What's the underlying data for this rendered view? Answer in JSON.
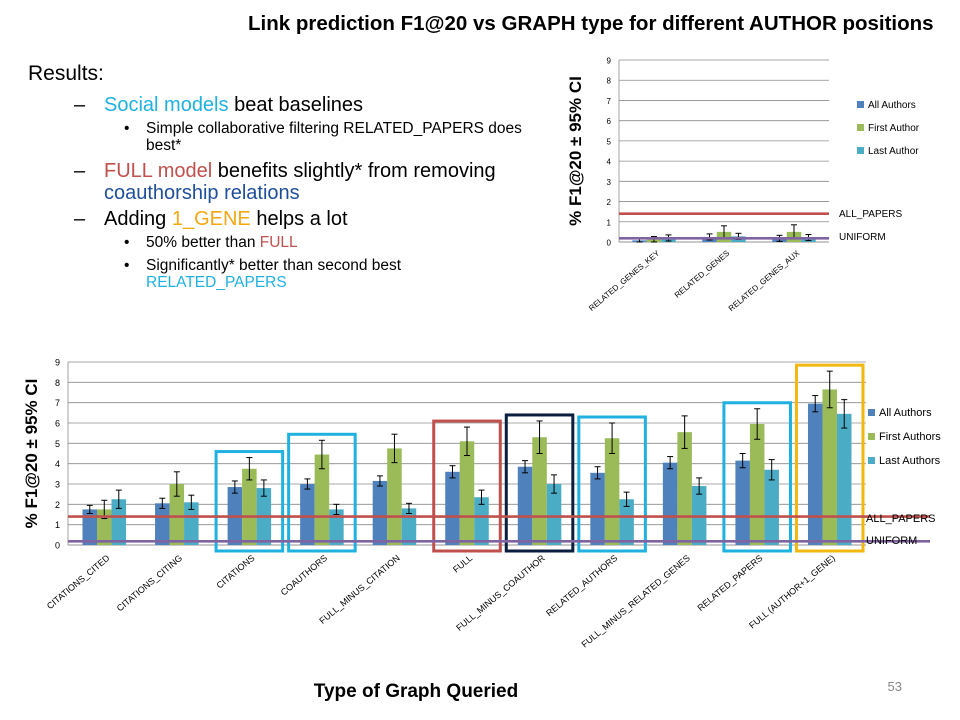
{
  "slide": {
    "title": "Link prediction F1@20 vs GRAPH type for different AUTHOR positions",
    "page_number": "53"
  },
  "bullets": {
    "heading": "Results:",
    "items": [
      {
        "parts": [
          {
            "text": "Social models",
            "color": "#1fb1e0"
          },
          {
            "text": " beat baselines",
            "color": ""
          }
        ],
        "sub": [
          [
            {
              "text": "Simple collaborative filtering RELATED_PAPERS does best*",
              "color": ""
            }
          ]
        ]
      },
      {
        "parts": [
          {
            "text": "FULL model",
            "color": "#c0504d"
          },
          {
            "text": " benefits slightly* from removing ",
            "color": ""
          },
          {
            "text": "coauthorship relations",
            "color": "#1f4e9a"
          }
        ],
        "sub": []
      },
      {
        "parts": [
          {
            "text": "Adding ",
            "color": ""
          },
          {
            "text": "1_GENE",
            "color": "#f3a712"
          },
          {
            "text": " helps a lot",
            "color": ""
          }
        ],
        "sub": [
          [
            {
              "text": "50% better than ",
              "color": ""
            },
            {
              "text": "FULL",
              "color": "#c0504d"
            }
          ],
          [
            {
              "text": "Significantly* better than second best ",
              "color": ""
            },
            {
              "text": "RELATED_PAPERS",
              "color": "#1fb1e0"
            }
          ]
        ]
      }
    ]
  },
  "chart_data": [
    {
      "type": "bar",
      "ylabel": "% F1@20 ± 95% CI",
      "xlabel": "",
      "ylim": [
        0,
        9
      ],
      "yticks": [
        "0",
        "1",
        "2",
        "3",
        "4",
        "5",
        "6",
        "7",
        "8",
        "9"
      ],
      "categories": [
        "RELATED_GENES_KEY",
        "RELATED_GENES",
        "RELATED_GENES_AUX"
      ],
      "series": [
        {
          "name": "All Authors",
          "color": "#4f81bd",
          "values": [
            0.08,
            0.25,
            0.18
          ],
          "errors": [
            0.1,
            0.15,
            0.15
          ]
        },
        {
          "name": "First Author",
          "color": "#9bbb59",
          "values": [
            0.12,
            0.5,
            0.5
          ],
          "errors": [
            0.15,
            0.3,
            0.35
          ]
        },
        {
          "name": "Last Author",
          "color": "#4bacc6",
          "values": [
            0.2,
            0.28,
            0.22
          ],
          "errors": [
            0.15,
            0.15,
            0.15
          ]
        }
      ],
      "reference_lines": [
        {
          "name": "ALL_PAPERS",
          "value": 1.4,
          "color": "#c0504d"
        },
        {
          "name": "UNIFORM",
          "value": 0.18,
          "color": "#8064a2"
        }
      ],
      "legend_position": "right",
      "grid": true
    },
    {
      "type": "bar",
      "ylabel": "% F1@20 ± 95% CI",
      "xlabel": "Type of Graph Queried",
      "ylim": [
        0,
        9
      ],
      "yticks": [
        "0",
        "1",
        "2",
        "3",
        "4",
        "5",
        "6",
        "7",
        "8",
        "9"
      ],
      "categories": [
        "CITATIONS_CITED",
        "CITATIONS_CITING",
        "CITATIONS",
        "COAUTHORS",
        "FULL_MINUS_CITATION",
        "FULL",
        "FULL_MINUS_COAUTHOR",
        "RELATED_AUTHORS",
        "FULL_MINUS_RELATED_GENES",
        "RELATED_PAPERS",
        "FULL (AUTHOR+1_GENE)"
      ],
      "series": [
        {
          "name": "All Authors",
          "color": "#4f81bd",
          "values": [
            1.75,
            2.05,
            2.85,
            3.0,
            3.15,
            3.6,
            3.85,
            3.55,
            4.05,
            4.15,
            6.95
          ],
          "errors": [
            0.2,
            0.25,
            0.3,
            0.25,
            0.25,
            0.3,
            0.3,
            0.3,
            0.3,
            0.35,
            0.4
          ]
        },
        {
          "name": "First Authors",
          "color": "#9bbb59",
          "values": [
            1.75,
            3.0,
            3.75,
            4.45,
            4.75,
            5.1,
            5.3,
            5.25,
            5.55,
            5.95,
            7.65
          ],
          "errors": [
            0.45,
            0.6,
            0.55,
            0.7,
            0.7,
            0.7,
            0.8,
            0.75,
            0.8,
            0.75,
            0.9
          ]
        },
        {
          "name": "Last Authors",
          "color": "#4bacc6",
          "values": [
            2.25,
            2.1,
            2.8,
            1.75,
            1.8,
            2.35,
            3.0,
            2.25,
            2.9,
            3.7,
            6.45
          ],
          "errors": [
            0.45,
            0.35,
            0.4,
            0.25,
            0.25,
            0.35,
            0.45,
            0.35,
            0.4,
            0.5,
            0.7
          ]
        }
      ],
      "reference_lines": [
        {
          "name": "ALL_PAPERS",
          "value": 1.4,
          "color": "#c0504d"
        },
        {
          "name": "UNIFORM",
          "value": 0.18,
          "color": "#8064a2"
        }
      ],
      "highlight_boxes": [
        {
          "category_index": 2,
          "color": "#1fb1e0"
        },
        {
          "category_index": 3,
          "color": "#1fb1e0"
        },
        {
          "category_index": 5,
          "color": "#c0504d"
        },
        {
          "category_index": 6,
          "color": "#0b1e3f"
        },
        {
          "category_index": 7,
          "color": "#1fb1e0"
        },
        {
          "category_index": 9,
          "color": "#1fb1e0"
        },
        {
          "category_index": 10,
          "color": "#f3b80f"
        }
      ],
      "legend_position": "right",
      "grid": true
    }
  ]
}
